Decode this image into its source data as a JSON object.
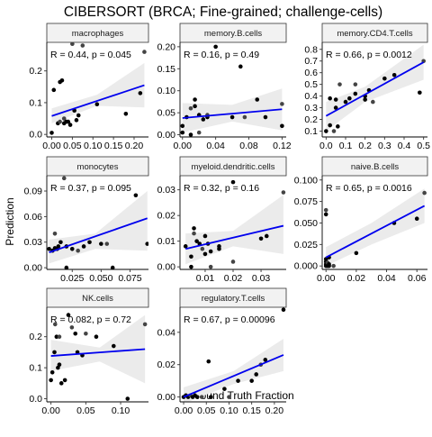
{
  "title": "CIBERSORT (BRCA; Fine-grained; challenge-cells)",
  "xlabel": "Ground Truth Fraction",
  "ylabel": "Prediction",
  "colors": {
    "fit_line": "#0000ee",
    "ribbon": "#ebebeb",
    "strip_bg": "#f2f2f2",
    "point": "#000000",
    "point_grey": "#444444"
  },
  "chart_data": {
    "type": "scatter",
    "title": "CIBERSORT (BRCA; Fine-grained; challenge-cells)",
    "xlabel": "Ground Truth Fraction",
    "ylabel": "Prediction",
    "grid": false,
    "panels": [
      {
        "name": "macrophages",
        "annotation": "R = 0.44, p = 0.045",
        "xlim": [
          -0.012,
          0.235
        ],
        "ylim": [
          -0.008,
          0.29
        ],
        "xticks": [
          0.0,
          0.05,
          0.1,
          0.15,
          0.2
        ],
        "xtick_labels": [
          "0.00",
          "0.05",
          "0.10",
          "0.15",
          "0.20"
        ],
        "yticks": [
          0.0,
          0.1,
          0.2
        ],
        "ytick_labels": [
          "0.0",
          "0.1",
          "0.2"
        ],
        "fit": [
          [
            0.0,
            0.058
          ],
          [
            0.225,
            0.155
          ]
        ],
        "band": [
          [
            0.0,
            0.035,
            0.082
          ],
          [
            0.11,
            0.09,
            0.125
          ],
          [
            0.225,
            0.085,
            0.225
          ]
        ],
        "points": [
          [
            0.0,
            0.005
          ],
          [
            0.005,
            0.14
          ],
          [
            0.015,
            0.035
          ],
          [
            0.02,
            0.04
          ],
          [
            0.02,
            0.165
          ],
          [
            0.025,
            0.17
          ],
          [
            0.03,
            0.035
          ],
          [
            0.03,
            0.05
          ],
          [
            0.035,
            0.04
          ],
          [
            0.04,
            0.04
          ],
          [
            0.045,
            0.03
          ],
          [
            0.05,
            0.285
          ],
          [
            0.055,
            0.075
          ],
          [
            0.06,
            0.045
          ],
          [
            0.065,
            0.06
          ],
          [
            0.075,
            0.28
          ],
          [
            0.11,
            0.095
          ],
          [
            0.18,
            0.065
          ],
          [
            0.215,
            0.13
          ],
          [
            0.225,
            0.26
          ]
        ]
      },
      {
        "name": "memory.B.cells",
        "annotation": "R = 0.16, p = 0.49",
        "xlim": [
          -0.003,
          0.125
        ],
        "ylim": [
          -0.005,
          0.21
        ],
        "xticks": [
          0.0,
          0.04,
          0.08,
          0.12
        ],
        "xtick_labels": [
          "0.00",
          "0.04",
          "0.08",
          "0.12"
        ],
        "yticks": [
          0.0,
          0.05,
          0.1,
          0.15,
          0.2
        ],
        "ytick_labels": [
          "0.00",
          "0.05",
          "0.10",
          "0.15",
          "0.20"
        ],
        "fit": [
          [
            0.0,
            0.038
          ],
          [
            0.12,
            0.058
          ]
        ],
        "band": [
          [
            0.0,
            0.005,
            0.072
          ],
          [
            0.06,
            0.03,
            0.068
          ],
          [
            0.12,
            0.01,
            0.105
          ]
        ],
        "points": [
          [
            0.0,
            0.005
          ],
          [
            0.0,
            0.02
          ],
          [
            0.005,
            0.04
          ],
          [
            0.01,
            0.06
          ],
          [
            0.01,
            0.0
          ],
          [
            0.015,
            0.08
          ],
          [
            0.015,
            0.065
          ],
          [
            0.02,
            0.005
          ],
          [
            0.02,
            0.045
          ],
          [
            0.025,
            0.035
          ],
          [
            0.03,
            0.04
          ],
          [
            0.03,
            0.045
          ],
          [
            0.04,
            0.2
          ],
          [
            0.06,
            0.04
          ],
          [
            0.07,
            0.155
          ],
          [
            0.075,
            0.04
          ],
          [
            0.09,
            0.08
          ],
          [
            0.1,
            0.04
          ],
          [
            0.12,
            0.02
          ],
          [
            0.12,
            0.07
          ]
        ]
      },
      {
        "name": "memory.CD4.T.cells",
        "annotation": "R = 0.66, p = 0.0012",
        "xlim": [
          -0.02,
          0.52
        ],
        "ylim": [
          0.05,
          0.86
        ],
        "xticks": [
          0.0,
          0.1,
          0.2,
          0.3,
          0.4,
          0.5
        ],
        "xtick_labels": [
          "0.0",
          "0.1",
          "0.2",
          "0.3",
          "0.4",
          "0.5"
        ],
        "yticks": [
          0.1,
          0.2,
          0.3,
          0.4,
          0.5,
          0.6,
          0.7,
          0.8
        ],
        "ytick_labels": [
          "0.1",
          "0.2",
          "0.3",
          "0.4",
          "0.5",
          "0.6",
          "0.7",
          "0.8"
        ],
        "fit": [
          [
            0.0,
            0.23
          ],
          [
            0.5,
            0.69
          ]
        ],
        "band": [
          [
            0.0,
            0.1,
            0.35
          ],
          [
            0.2,
            0.35,
            0.48
          ],
          [
            0.5,
            0.54,
            0.84
          ]
        ],
        "points": [
          [
            0.0,
            0.1
          ],
          [
            0.02,
            0.15
          ],
          [
            0.02,
            0.38
          ],
          [
            0.04,
            0.1
          ],
          [
            0.05,
            0.37
          ],
          [
            0.05,
            0.3
          ],
          [
            0.06,
            0.14
          ],
          [
            0.07,
            0.5
          ],
          [
            0.1,
            0.35
          ],
          [
            0.12,
            0.38
          ],
          [
            0.15,
            0.42
          ],
          [
            0.15,
            0.5
          ],
          [
            0.2,
            0.37
          ],
          [
            0.2,
            0.4
          ],
          [
            0.22,
            0.45
          ],
          [
            0.24,
            0.35
          ],
          [
            0.3,
            0.55
          ],
          [
            0.35,
            0.58
          ],
          [
            0.48,
            0.43
          ],
          [
            0.5,
            0.7
          ]
        ]
      },
      {
        "name": "monocytes",
        "annotation": "R = 0.37, p = 0.095",
        "xlim": [
          0.003,
          0.091
        ],
        "ylim": [
          -0.002,
          0.108
        ],
        "xticks": [
          0.025,
          0.05,
          0.075
        ],
        "xtick_labels": [
          "0.025",
          "0.050",
          "0.075"
        ],
        "yticks": [
          0.0,
          0.03,
          0.06,
          0.09
        ],
        "ytick_labels": [
          "0.00",
          "0.03",
          "0.06",
          "0.09"
        ],
        "fit": [
          [
            0.005,
            0.018
          ],
          [
            0.09,
            0.058
          ]
        ],
        "band": [
          [
            0.005,
            0.005,
            0.033
          ],
          [
            0.045,
            0.022,
            0.04
          ],
          [
            0.09,
            0.02,
            0.09
          ]
        ],
        "points": [
          [
            0.005,
            0.022
          ],
          [
            0.008,
            0.02
          ],
          [
            0.01,
            0.023
          ],
          [
            0.01,
            0.04
          ],
          [
            0.012,
            0.022
          ],
          [
            0.013,
            0.025
          ],
          [
            0.015,
            0.03
          ],
          [
            0.018,
            0.105
          ],
          [
            0.02,
            0.0
          ],
          [
            0.02,
            0.025
          ],
          [
            0.025,
            0.022
          ],
          [
            0.03,
            0.02
          ],
          [
            0.035,
            0.025
          ],
          [
            0.04,
            0.03
          ],
          [
            0.05,
            0.028
          ],
          [
            0.055,
            0.028
          ],
          [
            0.06,
            0.0
          ],
          [
            0.08,
            0.085
          ],
          [
            0.09,
            0.028
          ]
        ]
      },
      {
        "name": "myeloid.dendritic.cells",
        "annotation": "R = 0.32, p = 0.16",
        "xlim": [
          0.001,
          0.039
        ],
        "ylim": [
          -0.001,
          0.0355
        ],
        "xticks": [
          0.01,
          0.02,
          0.03
        ],
        "xtick_labels": [
          "0.01",
          "0.02",
          "0.03"
        ],
        "yticks": [
          0.0,
          0.01,
          0.02,
          0.03
        ],
        "ytick_labels": [
          "0.00",
          "0.01",
          "0.02",
          "0.03"
        ],
        "fit": [
          [
            0.003,
            0.007
          ],
          [
            0.038,
            0.016
          ]
        ],
        "band": [
          [
            0.003,
            0.001,
            0.013
          ],
          [
            0.02,
            0.008,
            0.014
          ],
          [
            0.038,
            0.005,
            0.028
          ]
        ],
        "points": [
          [
            0.003,
            0.008
          ],
          [
            0.005,
            0.004
          ],
          [
            0.005,
            0.0
          ],
          [
            0.006,
            0.013
          ],
          [
            0.006,
            0.015
          ],
          [
            0.007,
            0.01
          ],
          [
            0.008,
            0.009
          ],
          [
            0.009,
            0.007
          ],
          [
            0.01,
            0.005
          ],
          [
            0.01,
            0.012
          ],
          [
            0.011,
            0.009
          ],
          [
            0.012,
            0.0
          ],
          [
            0.012,
            0.006
          ],
          [
            0.015,
            0.008
          ],
          [
            0.015,
            0.007
          ],
          [
            0.02,
            0.002
          ],
          [
            0.02,
            0.033
          ],
          [
            0.03,
            0.011
          ],
          [
            0.032,
            0.012
          ],
          [
            0.038,
            0.029
          ]
        ]
      },
      {
        "name": "naive.B.cells",
        "annotation": "R = 0.65, p = 0.0016",
        "xlim": [
          -0.0025,
          0.067
        ],
        "ylim": [
          -0.004,
          0.105
        ],
        "xticks": [
          0.0,
          0.02,
          0.04,
          0.06
        ],
        "xtick_labels": [
          "0.00",
          "0.02",
          "0.04",
          "0.06"
        ],
        "yticks": [
          0.0,
          0.025,
          0.05,
          0.075,
          0.1
        ],
        "ytick_labels": [
          "0.000",
          "0.025",
          "0.050",
          "0.075",
          "0.100"
        ],
        "fit": [
          [
            0.0,
            0.01
          ],
          [
            0.065,
            0.07
          ]
        ],
        "band": [
          [
            0.0,
            0.0,
            0.022
          ],
          [
            0.03,
            0.025,
            0.05
          ],
          [
            0.065,
            0.05,
            0.09
          ]
        ],
        "points": [
          [
            0.0,
            0.0
          ],
          [
            0.0,
            0.005
          ],
          [
            0.0,
            0.06
          ],
          [
            0.0,
            0.065
          ],
          [
            0.0,
            0.008
          ],
          [
            0.0,
            0.002
          ],
          [
            0.001,
            0.0
          ],
          [
            0.001,
            0.004
          ],
          [
            0.002,
            0.0
          ],
          [
            0.002,
            0.002
          ],
          [
            0.002,
            0.01
          ],
          [
            0.005,
            0.0
          ],
          [
            0.02,
            0.015
          ],
          [
            0.045,
            0.05
          ],
          [
            0.06,
            0.055
          ],
          [
            0.065,
            0.085
          ]
        ]
      },
      {
        "name": "NK.cells",
        "annotation": "R = 0.082, p = 0.72",
        "xlim": [
          -0.006,
          0.14
        ],
        "ylim": [
          -0.01,
          0.295
        ],
        "xticks": [
          0.0,
          0.05,
          0.1
        ],
        "xtick_labels": [
          "0.00",
          "0.05",
          "0.10"
        ],
        "yticks": [
          0.0,
          0.1,
          0.2
        ],
        "ytick_labels": [
          "0.0",
          "0.1",
          "0.2"
        ],
        "fit": [
          [
            0.0,
            0.138
          ],
          [
            0.135,
            0.16
          ]
        ],
        "band": [
          [
            0.0,
            0.09,
            0.19
          ],
          [
            0.07,
            0.12,
            0.165
          ],
          [
            0.135,
            0.05,
            0.27
          ]
        ],
        "points": [
          [
            0.0,
            0.06
          ],
          [
            0.002,
            0.085
          ],
          [
            0.005,
            0.15
          ],
          [
            0.006,
            0.24
          ],
          [
            0.008,
            0.2
          ],
          [
            0.01,
            0.1
          ],
          [
            0.012,
            0.11
          ],
          [
            0.012,
            0.2
          ],
          [
            0.015,
            0.05
          ],
          [
            0.02,
            0.06
          ],
          [
            0.025,
            0.27
          ],
          [
            0.03,
            0.23
          ],
          [
            0.035,
            0.21
          ],
          [
            0.038,
            0.15
          ],
          [
            0.045,
            0.14
          ],
          [
            0.05,
            0.21
          ],
          [
            0.065,
            0.2
          ],
          [
            0.09,
            0.17
          ],
          [
            0.11,
            0.0
          ],
          [
            0.135,
            0.24
          ]
        ]
      },
      {
        "name": "regulatory.T.cells",
        "annotation": "R = 0.67, p = 0.00096",
        "xlim": [
          -0.008,
          0.226
        ],
        "ylim": [
          -0.003,
          0.0555
        ],
        "xticks": [
          0.0,
          0.05,
          0.1,
          0.15,
          0.2
        ],
        "xtick_labels": [
          "0.00",
          "0.05",
          "0.10",
          "0.15",
          "0.20"
        ],
        "yticks": [
          0.0,
          0.02,
          0.04
        ],
        "ytick_labels": [
          "0.00",
          "0.02",
          "0.04"
        ],
        "fit": [
          [
            0.0,
            0.0
          ],
          [
            0.22,
            0.026
          ]
        ],
        "band": [
          [
            0.0,
            -0.004,
            0.006
          ],
          [
            0.11,
            0.008,
            0.016
          ],
          [
            0.22,
            0.016,
            0.036
          ]
        ],
        "points": [
          [
            0.0,
            0.0
          ],
          [
            0.005,
            0.001
          ],
          [
            0.01,
            0.0
          ],
          [
            0.015,
            0.001
          ],
          [
            0.02,
            0.0
          ],
          [
            0.025,
            0.001
          ],
          [
            0.03,
            0.0
          ],
          [
            0.04,
            0.0
          ],
          [
            0.055,
            0.022
          ],
          [
            0.06,
            0.0
          ],
          [
            0.09,
            0.005
          ],
          [
            0.1,
            0.0
          ],
          [
            0.12,
            0.01
          ],
          [
            0.15,
            0.01
          ],
          [
            0.16,
            0.014
          ],
          [
            0.17,
            0.02
          ],
          [
            0.18,
            0.023
          ],
          [
            0.22,
            0.054
          ]
        ]
      }
    ]
  }
}
